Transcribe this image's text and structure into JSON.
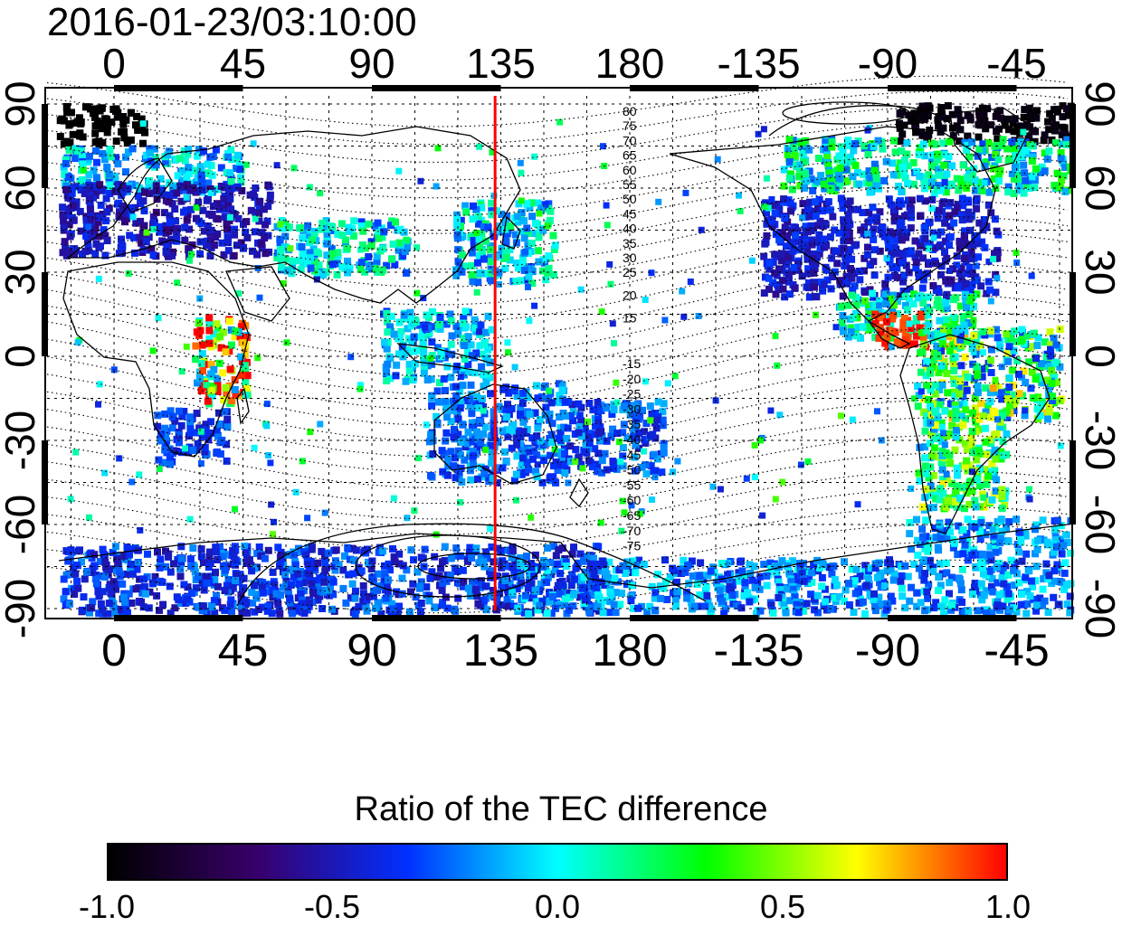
{
  "title": "2016-01-23/03:10:00",
  "map": {
    "top_axis_labels": [
      "0",
      "45",
      "90",
      "135",
      "180",
      "-135",
      "-90",
      "-45"
    ],
    "bottom_axis_labels": [
      "0",
      "45",
      "90",
      "135",
      "180",
      "-135",
      "-90",
      "-45"
    ],
    "left_axis_labels": [
      "90",
      "60",
      "30",
      "0",
      "-30",
      "-60",
      "-90"
    ],
    "right_axis_labels": [
      "90",
      "60",
      "30",
      "0",
      "-30",
      "-60",
      "-90"
    ],
    "meridian_marker_longitude": 133,
    "meridian_marker_color": "#ff0000",
    "contour_labels_north": [
      "80",
      "75",
      "70",
      "65",
      "60",
      "55",
      "50",
      "45",
      "40",
      "35",
      "30",
      "25",
      "20",
      "15"
    ],
    "contour_labels_south": [
      "-15",
      "-20",
      "-25",
      "-30",
      "-35",
      "-40",
      "-45",
      "-50",
      "-55",
      "-60",
      "-65",
      "-70",
      "-75"
    ]
  },
  "colorbar": {
    "title": "Ratio of the TEC difference",
    "tick_labels": [
      "-1.0",
      "-0.5",
      "0.0",
      "0.5",
      "1.0"
    ],
    "colors": [
      "#000000",
      "#38006c",
      "#0030ff",
      "#00ffff",
      "#00ff00",
      "#ffff00",
      "#ff0000"
    ]
  }
}
